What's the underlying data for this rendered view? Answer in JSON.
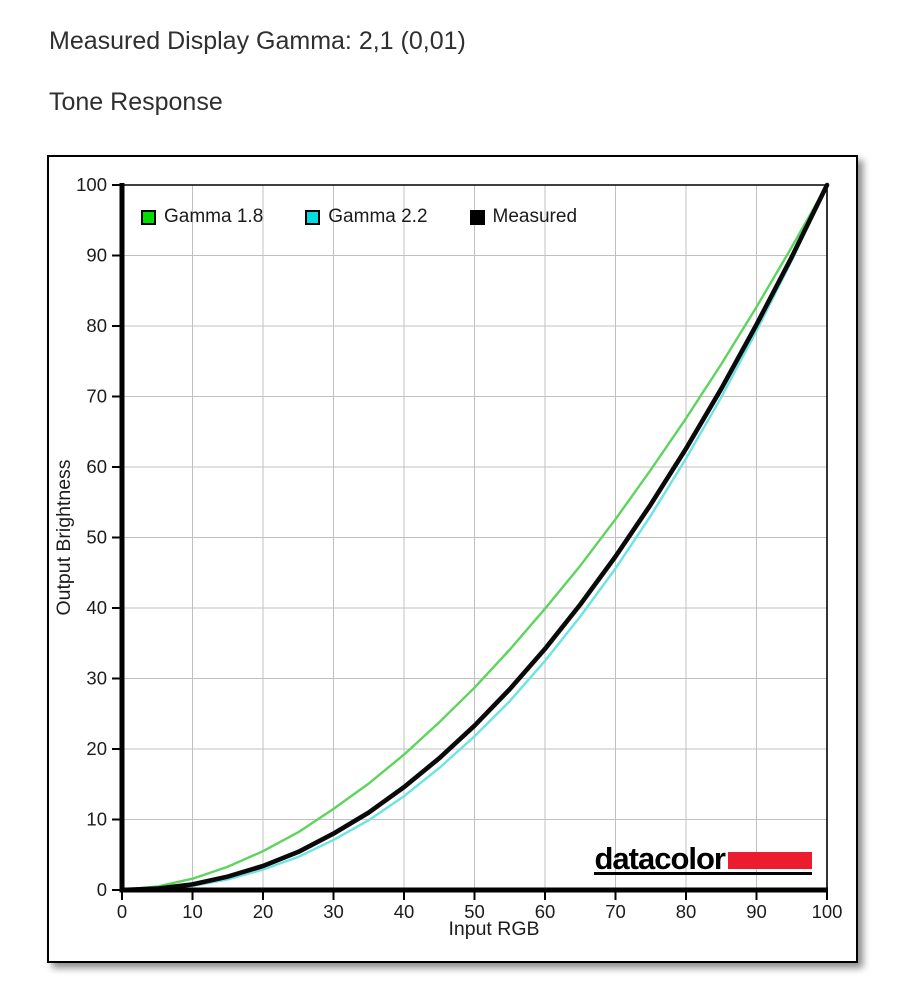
{
  "page": {
    "heading": "Measured Display Gamma: 2,1 (0,01)",
    "subheading": "Tone Response"
  },
  "chart_data": {
    "type": "line",
    "title": "Tone Response",
    "xlabel": "Input RGB",
    "ylabel": "Output Brightness",
    "xlim": [
      0,
      100
    ],
    "ylim": [
      0,
      100
    ],
    "grid": true,
    "legend_position": "top-left",
    "x_ticks": [
      0,
      10,
      20,
      30,
      40,
      50,
      60,
      70,
      80,
      90,
      100
    ],
    "y_ticks": [
      0,
      10,
      20,
      30,
      40,
      50,
      60,
      70,
      80,
      90,
      100
    ],
    "x": [
      0,
      5,
      10,
      15,
      20,
      25,
      30,
      35,
      40,
      45,
      50,
      55,
      60,
      65,
      70,
      75,
      80,
      85,
      90,
      95,
      100
    ],
    "series": [
      {
        "name": "Gamma 1.8",
        "gamma": 1.8,
        "swatch_color": "#00dd00",
        "line_color": "#5dd55d",
        "values": [
          0,
          0.5,
          1.6,
          3.3,
          5.5,
          8.2,
          11.5,
          15.1,
          19.2,
          23.8,
          28.7,
          34.1,
          39.9,
          46.0,
          52.6,
          59.6,
          66.9,
          74.6,
          82.7,
          91.2,
          100
        ]
      },
      {
        "name": "Gamma 2.2",
        "gamma": 2.2,
        "swatch_color": "#00dde0",
        "line_color": "#6de3e3",
        "values": [
          0,
          0.1,
          0.6,
          1.5,
          2.9,
          4.7,
          7.1,
          9.9,
          13.3,
          17.3,
          21.8,
          26.8,
          32.5,
          38.8,
          45.6,
          53.1,
          61.2,
          69.9,
          79.3,
          89.3,
          100
        ]
      },
      {
        "name": "Measured",
        "gamma": 2.1,
        "swatch_color": "#000000",
        "line_color": "#0a0a0a",
        "values": [
          0,
          0.2,
          0.8,
          1.9,
          3.4,
          5.4,
          8.0,
          11.0,
          14.6,
          18.7,
          23.3,
          28.5,
          34.2,
          40.5,
          47.3,
          54.7,
          62.6,
          71.1,
          80.2,
          89.8,
          100
        ]
      }
    ],
    "colors": {
      "grid": "#c0c0c0",
      "axis": "#000000",
      "tick_text": "#1c1c1c"
    },
    "branding": {
      "logo_text": "datacolor",
      "logo_red": "#ea1c2d"
    }
  }
}
